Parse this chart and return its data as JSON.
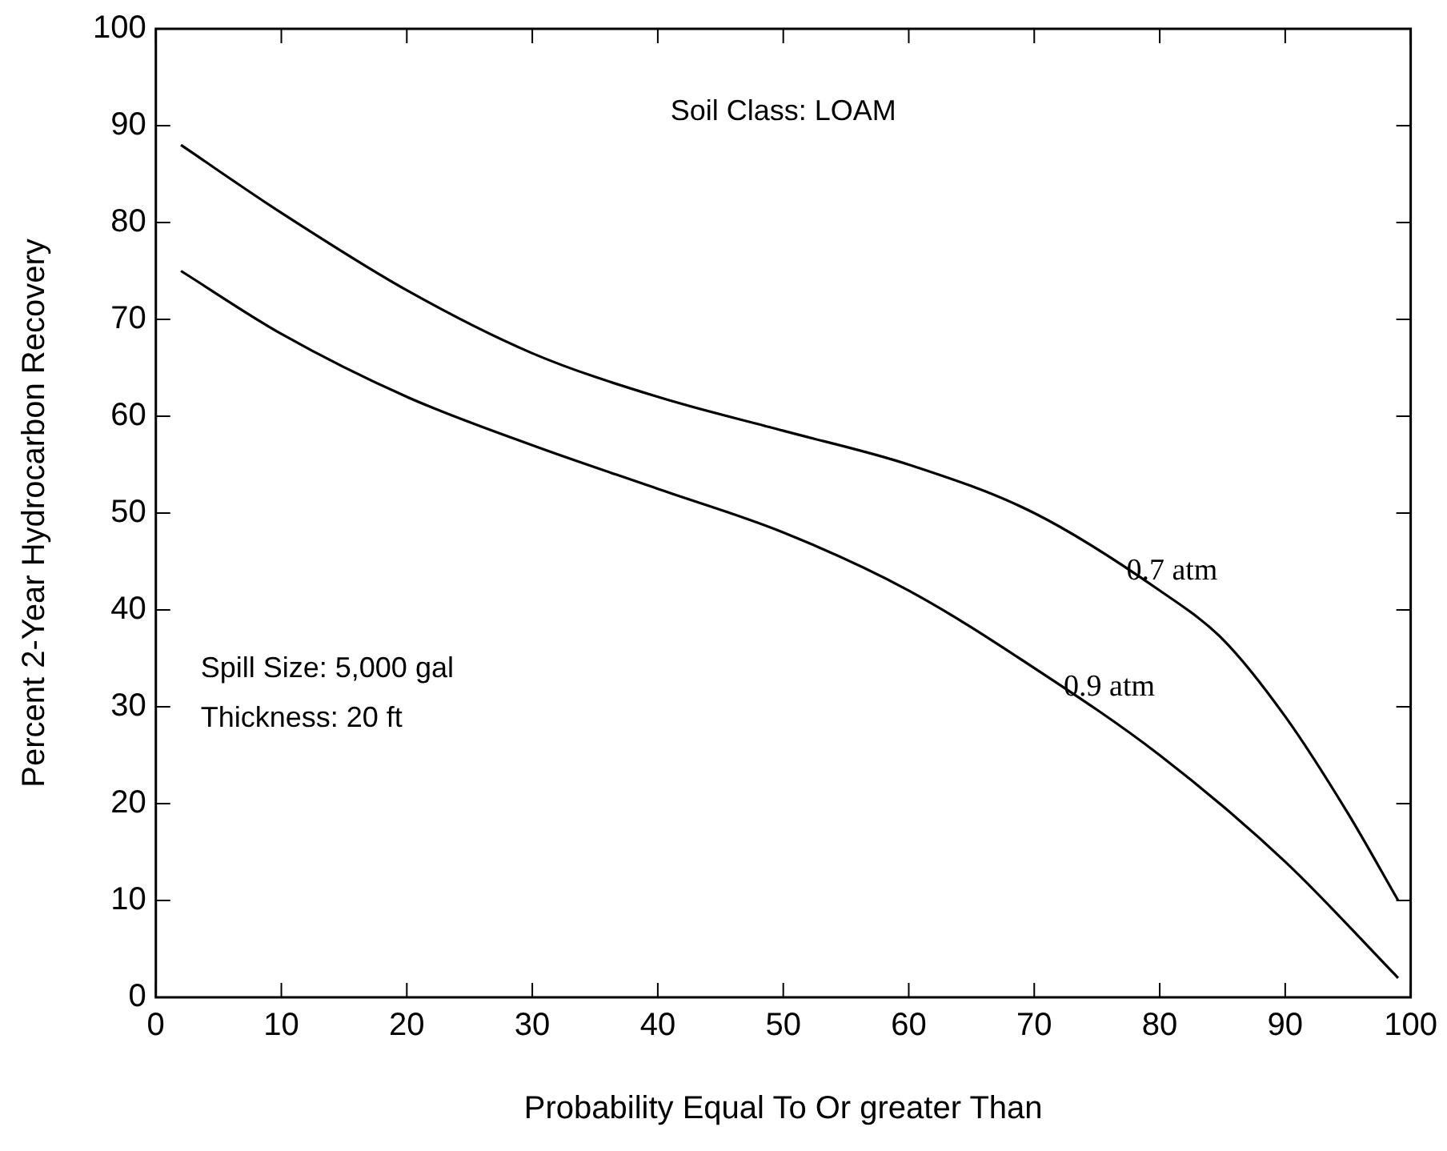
{
  "chart_data": {
    "type": "line",
    "title": "Soil Class: LOAM",
    "xlabel": "Probability Equal To Or greater Than",
    "ylabel": "Percent 2-Year Hydrocarbon Recovery",
    "xlim": [
      0,
      100
    ],
    "xticks": [
      0,
      10,
      20,
      30,
      40,
      50,
      60,
      70,
      80,
      90,
      100
    ],
    "ylim": [
      0,
      100
    ],
    "yticks": [
      0,
      10,
      20,
      30,
      40,
      50,
      60,
      70,
      80,
      90,
      100
    ],
    "grid": false,
    "legend": false,
    "marker": "none",
    "line_style": "solid",
    "series": [
      {
        "name": "0.7 atm",
        "color": "#000000",
        "x": [
          2,
          10,
          20,
          30,
          40,
          50,
          60,
          70,
          80,
          85,
          90,
          95,
          99
        ],
        "values": [
          88,
          81,
          73,
          66.5,
          62,
          58.5,
          55,
          50,
          42,
          37,
          29,
          19,
          10
        ]
      },
      {
        "name": "0.9 atm",
        "color": "#000000",
        "x": [
          2,
          10,
          20,
          30,
          40,
          50,
          60,
          70,
          80,
          90,
          99
        ],
        "values": [
          75,
          68.5,
          62,
          57,
          52.5,
          48,
          42,
          34,
          25,
          14,
          2
        ]
      }
    ],
    "annotations": [
      "Spill Size: 5,000 gal",
      "Thickness: 20 ft"
    ]
  }
}
